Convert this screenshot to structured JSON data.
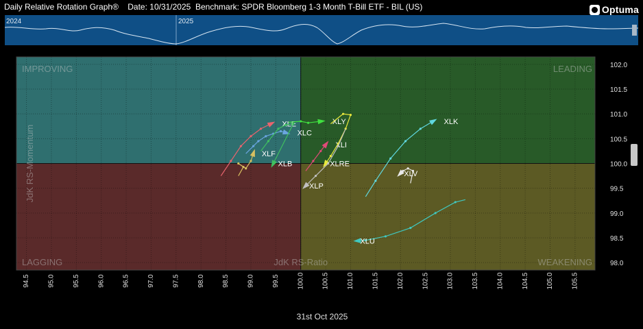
{
  "header": {
    "title": "Daily Relative Rotation Graph®    Date: 10/31/2025  Benchmark: SPDR Bloomberg 1-3 Month T-Bill ETF - BIL (US)",
    "brand": "Optuma"
  },
  "history_strip": {
    "labels": [
      "2024",
      "2025"
    ]
  },
  "chart_data": {
    "type": "scatter",
    "title": "",
    "subtitle": "",
    "xlabel": "JdK RS-Ratio",
    "ylabel": "JdK RS-Momentum",
    "xlim": [
      94.3,
      105.9
    ],
    "ylim": [
      97.85,
      102.15
    ],
    "x_ticks": [
      "94.5",
      "95.0",
      "95.5",
      "96.0",
      "96.5",
      "97.0",
      "97.5",
      "98.0",
      "98.5",
      "99.0",
      "99.5",
      "100.0",
      "100.5",
      "101.0",
      "101.5",
      "102.0",
      "102.5",
      "103.0",
      "103.5",
      "104.0",
      "104.5",
      "105.0",
      "105.5"
    ],
    "y_ticks": [
      "98.0",
      "98.5",
      "99.0",
      "99.5",
      "100.0",
      "100.5",
      "101.0",
      "101.5",
      "102.0"
    ],
    "date_label": "31st Oct 2025",
    "grid": true,
    "quadrants": [
      {
        "name": "IMPROVING",
        "color": "#2f6f6f"
      },
      {
        "name": "LEADING",
        "color": "#285a28"
      },
      {
        "name": "LAGGING",
        "color": "#5a2a2a"
      },
      {
        "name": "WEAKENING",
        "color": "#5c5a24"
      }
    ],
    "series": [
      {
        "name": "XLE",
        "color": "#e8646e",
        "points": [
          [
            98.4,
            99.75
          ],
          [
            98.6,
            100.05
          ],
          [
            98.8,
            100.35
          ],
          [
            99.0,
            100.55
          ],
          [
            99.2,
            100.7
          ],
          [
            99.4,
            100.8
          ]
        ]
      },
      {
        "name": "XLC",
        "color": "#6aa5e0",
        "points": [
          [
            98.9,
            100.2
          ],
          [
            99.05,
            100.35
          ],
          [
            99.15,
            100.45
          ],
          [
            99.3,
            100.55
          ],
          [
            99.45,
            100.6
          ],
          [
            99.6,
            100.65
          ],
          [
            99.7,
            100.62
          ]
        ]
      },
      {
        "name": "XLF",
        "color": "#d8c060",
        "points": [
          [
            98.75,
            99.75
          ],
          [
            98.85,
            99.93
          ],
          [
            98.75,
            100.0
          ],
          [
            98.9,
            99.9
          ],
          [
            99.0,
            100.05
          ],
          [
            99.05,
            100.2
          ]
        ]
      },
      {
        "name": "XLB",
        "color": "#40c060",
        "points": [
          [
            99.2,
            100.25
          ],
          [
            99.35,
            100.45
          ],
          [
            99.55,
            100.7
          ],
          [
            99.7,
            100.78
          ],
          [
            99.85,
            100.8
          ],
          [
            99.45,
            100.0
          ]
        ]
      },
      {
        "name": "XLY",
        "color": "#40e040",
        "points": [
          [
            99.75,
            100.83
          ],
          [
            100.0,
            100.85
          ],
          [
            100.15,
            100.82
          ],
          [
            100.4,
            100.85
          ]
        ]
      },
      {
        "name": "XLI",
        "color": "#e04a78",
        "points": [
          [
            100.1,
            99.85
          ],
          [
            100.25,
            100.05
          ],
          [
            100.4,
            100.25
          ],
          [
            100.5,
            100.38
          ]
        ]
      },
      {
        "name": "XLRE",
        "color": "#e8e83c",
        "points": [
          [
            100.6,
            100.8
          ],
          [
            100.85,
            101.0
          ],
          [
            101.0,
            100.98
          ],
          [
            100.9,
            100.7
          ],
          [
            100.75,
            100.4
          ],
          [
            100.6,
            100.15
          ],
          [
            100.5,
            100.0
          ]
        ]
      },
      {
        "name": "XLP",
        "color": "#c0c0c0",
        "points": [
          [
            100.9,
            100.7
          ],
          [
            100.75,
            100.35
          ],
          [
            100.55,
            100.0
          ],
          [
            100.3,
            99.75
          ],
          [
            100.1,
            99.55
          ]
        ]
      },
      {
        "name": "XLK",
        "color": "#60d8e0",
        "points": [
          [
            101.3,
            99.33
          ],
          [
            101.5,
            99.65
          ],
          [
            101.8,
            100.1
          ],
          [
            102.1,
            100.45
          ],
          [
            102.4,
            100.7
          ],
          [
            102.65,
            100.85
          ]
        ]
      },
      {
        "name": "XLV",
        "color": "#e8e8e8",
        "points": [
          [
            102.2,
            99.6
          ],
          [
            102.25,
            99.85
          ],
          [
            102.15,
            99.9
          ],
          [
            102.05,
            99.85
          ],
          [
            102.0,
            99.8
          ]
        ]
      },
      {
        "name": "XLU",
        "color": "#40c8c0",
        "points": [
          [
            103.3,
            99.27
          ],
          [
            103.1,
            99.22
          ],
          [
            102.7,
            99.0
          ],
          [
            102.2,
            98.7
          ],
          [
            101.7,
            98.53
          ],
          [
            101.3,
            98.45
          ],
          [
            101.15,
            98.44
          ]
        ]
      }
    ]
  }
}
